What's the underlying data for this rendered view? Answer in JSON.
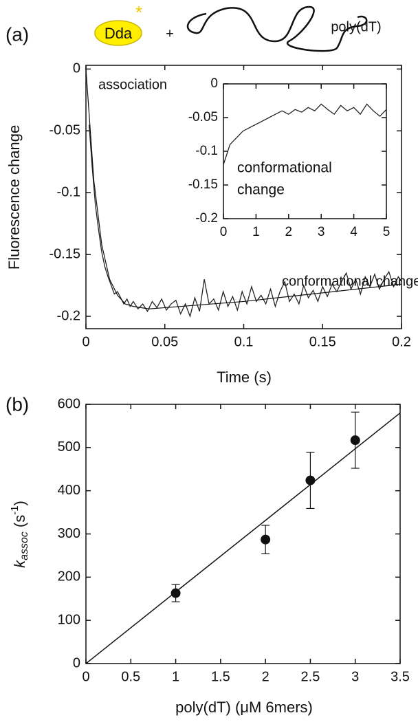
{
  "header": {
    "enzyme": "Dda",
    "plus": "+",
    "substrate": "poly(dT)"
  },
  "chart_data": [
    {
      "type": "line",
      "panel": "(a)",
      "ylabel": "Fluorescence change",
      "xlabel": "Time (s)",
      "xlim": [
        0,
        0.2
      ],
      "ylim": [
        -0.21,
        0.003
      ],
      "xticks": [
        0,
        0.05,
        0.1,
        0.15,
        0.2
      ],
      "yticks": [
        0,
        -0.05,
        -0.1,
        -0.15,
        -0.2
      ],
      "annotations": [
        "association",
        "conformational change"
      ],
      "series": [
        {
          "color": "#222222",
          "x": [
            0.002,
            0.004,
            0.006,
            0.008,
            0.01,
            0.012,
            0.014,
            0.016,
            0.018,
            0.02,
            0.022,
            0.024,
            0.026,
            0.028,
            0.03,
            0.033,
            0.036,
            0.039,
            0.042,
            0.045,
            0.048,
            0.051,
            0.054,
            0.057,
            0.06,
            0.063,
            0.066,
            0.069,
            0.072,
            0.075,
            0.078,
            0.081,
            0.084,
            0.087,
            0.09,
            0.093,
            0.096,
            0.099,
            0.102,
            0.105,
            0.108,
            0.111,
            0.114,
            0.117,
            0.12,
            0.123,
            0.126,
            0.129,
            0.132,
            0.135,
            0.138,
            0.141,
            0.144,
            0.147,
            0.15,
            0.153,
            0.156,
            0.159,
            0.162,
            0.165,
            0.168,
            0.171,
            0.174,
            0.177,
            0.18,
            0.183,
            0.186,
            0.189,
            0.192,
            0.195,
            0.198,
            0.2
          ],
          "values": [
            -0.045,
            -0.08,
            -0.11,
            -0.13,
            -0.148,
            -0.16,
            -0.168,
            -0.175,
            -0.182,
            -0.18,
            -0.185,
            -0.19,
            -0.186,
            -0.192,
            -0.188,
            -0.194,
            -0.19,
            -0.196,
            -0.188,
            -0.193,
            -0.186,
            -0.195,
            -0.19,
            -0.187,
            -0.198,
            -0.19,
            -0.2,
            -0.185,
            -0.196,
            -0.17,
            -0.19,
            -0.186,
            -0.195,
            -0.18,
            -0.192,
            -0.184,
            -0.195,
            -0.18,
            -0.19,
            -0.176,
            -0.188,
            -0.183,
            -0.19,
            -0.178,
            -0.192,
            -0.18,
            -0.172,
            -0.188,
            -0.182,
            -0.19,
            -0.175,
            -0.185,
            -0.179,
            -0.188,
            -0.176,
            -0.184,
            -0.174,
            -0.18,
            -0.172,
            -0.165,
            -0.178,
            -0.17,
            -0.182,
            -0.168,
            -0.176,
            -0.166,
            -0.178,
            -0.17,
            -0.164,
            -0.176,
            -0.168,
            -0.172
          ]
        },
        {
          "color": "#111111",
          "x": [
            0,
            0.005,
            0.01,
            0.015,
            0.02,
            0.025,
            0.03,
            0.04,
            0.05,
            0.1,
            0.15,
            0.2
          ],
          "values": [
            0,
            -0.09,
            -0.142,
            -0.17,
            -0.183,
            -0.19,
            -0.192,
            -0.194,
            -0.193,
            -0.188,
            -0.181,
            -0.174
          ]
        }
      ]
    },
    {
      "type": "line",
      "xlim": [
        0,
        5
      ],
      "ylim": [
        -0.2,
        0
      ],
      "xticks": [
        0,
        1,
        2,
        3,
        4,
        5
      ],
      "yticks": [
        0,
        -0.05,
        -0.1,
        -0.15,
        -0.2
      ],
      "annotations": [
        "conformational",
        "change"
      ],
      "series": [
        {
          "color": "#222222",
          "x": [
            0,
            0.2,
            0.4,
            0.6,
            0.8,
            1,
            1.2,
            1.4,
            1.6,
            1.8,
            2,
            2.2,
            2.4,
            2.6,
            2.8,
            3,
            3.2,
            3.4,
            3.6,
            3.8,
            4,
            4.2,
            4.4,
            4.6,
            4.8,
            5
          ],
          "values": [
            -0.12,
            -0.09,
            -0.08,
            -0.07,
            -0.065,
            -0.06,
            -0.055,
            -0.05,
            -0.045,
            -0.04,
            -0.045,
            -0.038,
            -0.042,
            -0.035,
            -0.04,
            -0.03,
            -0.038,
            -0.045,
            -0.032,
            -0.04,
            -0.035,
            -0.045,
            -0.03,
            -0.04,
            -0.048,
            -0.038
          ]
        }
      ]
    },
    {
      "type": "scatter",
      "panel": "(b)",
      "xlabel": "poly(dT) (μM 6mers)",
      "ylabel": {
        "symbol": "k",
        "sub": "assoc",
        "unit": "(s",
        "sup": "-1",
        "close": ")"
      },
      "xlim": [
        0,
        3.5
      ],
      "ylim": [
        0,
        600
      ],
      "xticks": [
        0,
        0.5,
        1,
        1.5,
        2,
        2.5,
        3,
        3.5
      ],
      "yticks": [
        0,
        100,
        200,
        300,
        400,
        500,
        600
      ],
      "points": {
        "color": "#111111",
        "x": [
          1,
          2,
          2.5,
          3
        ],
        "values": [
          163,
          287,
          424,
          517
        ],
        "errors": [
          20,
          33,
          65,
          65
        ]
      },
      "fit": {
        "color": "#111111",
        "x": [
          0,
          3.5
        ],
        "values": [
          0,
          580
        ]
      }
    }
  ]
}
